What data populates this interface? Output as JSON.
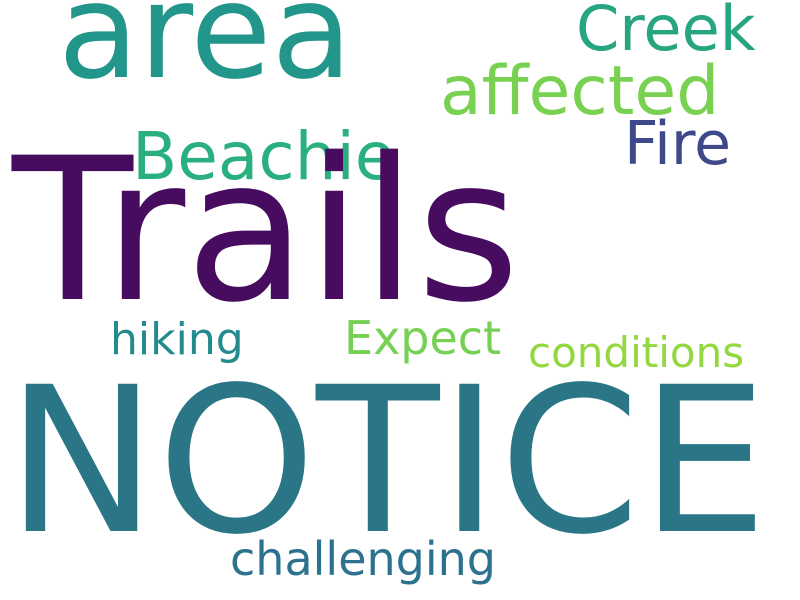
{
  "word_cloud": {
    "words": {
      "notice": "NOTICE",
      "trails": "Trails",
      "area": "area",
      "affected": "affected",
      "creek": "Creek",
      "beachie": "Beachie",
      "fire": "Fire",
      "expect": "Expect",
      "hiking": "hiking",
      "conditions": "conditions",
      "challenging": "challenging"
    },
    "colors": {
      "notice": "#2a7687",
      "trails": "#470c5f",
      "area": "#23968b",
      "affected": "#79d151",
      "creek": "#27a580",
      "beachie": "#2ab07f",
      "fire": "#3f4889",
      "expect": "#75d054",
      "hiking": "#238a8d",
      "conditions": "#93d741",
      "challenging": "#2c728e"
    }
  }
}
